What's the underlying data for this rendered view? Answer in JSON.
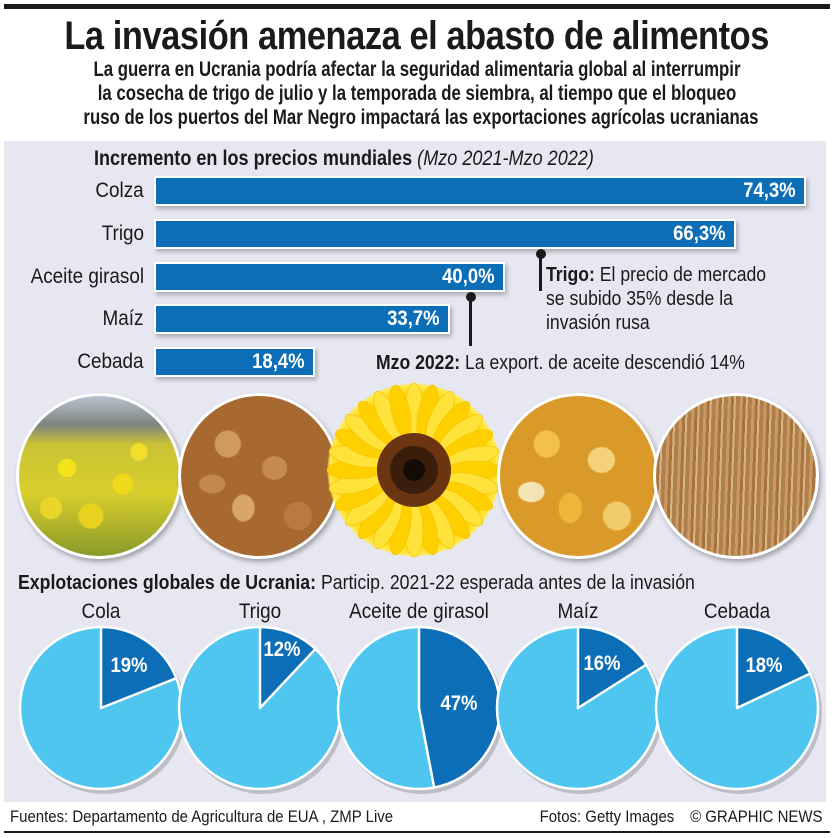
{
  "header": {
    "title": "La invasión amenaza el abasto de alimentos",
    "subtitle_lines": [
      "La guerra en Ucrania podría afectar la seguridad alimentaria global al interrumpir",
      "la cosecha de trigo de julio y la temporada de siembra, al tiempo que el bloqueo",
      "ruso de los puertos del Mar Negro impactará las exportaciones agrícolas ucranianas"
    ]
  },
  "colors": {
    "bar": "#0b6eb6",
    "pie_share": "#0b6eb6",
    "pie_rest": "#4fc6ef",
    "panel": "#e6e7f1"
  },
  "chart_data": [
    {
      "type": "bar",
      "orientation": "horizontal",
      "title": "Incremento en los precios mundiales",
      "subtitle": "(Mzo 2021-Mzo 2022)",
      "categories": [
        "Colza",
        "Trigo",
        "Aceite girasol",
        "Maíz",
        "Cebada"
      ],
      "values": [
        74.3,
        66.3,
        40.0,
        33.7,
        18.4
      ],
      "value_labels": [
        "74,3%",
        "66,3%",
        "40,0%",
        "33,7%",
        "18,4%"
      ],
      "unit": "%",
      "xlim": [
        0,
        74.3
      ],
      "annotations": [
        {
          "target": "Trigo",
          "bold": "Trigo:",
          "lines": [
            "El precio de mercado",
            "se subido 35% desde la",
            "invasión rusa"
          ]
        },
        {
          "target": "Aceite girasol",
          "bold": "Mzo 2022:",
          "lines": [
            "La export. de aceite descendió 14%"
          ]
        }
      ]
    },
    {
      "type": "pie",
      "title": "Explotaciones globales de Ucrania:",
      "subtitle": "Particip. 2021-22 esperada antes de la invasión",
      "categories": [
        "Cola",
        "Trigo",
        "Aceite de girasol",
        "Maíz",
        "Cebada"
      ],
      "values": [
        19,
        12,
        47,
        16,
        18
      ],
      "value_labels": [
        "19%",
        "12%",
        "47%",
        "16%",
        "18%"
      ],
      "unit": "%"
    }
  ],
  "photos": [
    {
      "icon": "rapeseed-field-photo"
    },
    {
      "icon": "wheat-grains-photo"
    },
    {
      "icon": "sunflower-photo"
    },
    {
      "icon": "corn-kernels-photo"
    },
    {
      "icon": "barley-field-photo"
    }
  ],
  "footer": {
    "sources": "Fuentes: Departamento de Agricultura de EUA , ZMP Live",
    "photos": "Fotos: Getty Images",
    "credit": "© GRAPHIC NEWS"
  }
}
